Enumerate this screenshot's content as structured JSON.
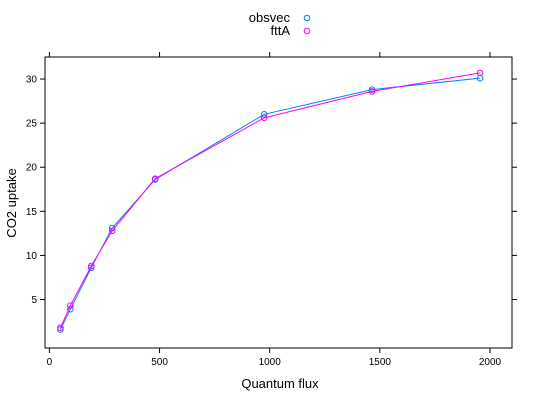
{
  "chart_data": {
    "type": "line",
    "title": "",
    "xlabel": "Quantum flux",
    "ylabel": "CO2 uptake",
    "xlim": [
      -20,
      2100
    ],
    "ylim": [
      -0.5,
      32.5
    ],
    "xticks": [
      0,
      500,
      1000,
      1500,
      2000
    ],
    "yticks": [
      5,
      10,
      15,
      20,
      25,
      30
    ],
    "grid": false,
    "legend_position": "top-center",
    "series": [
      {
        "name": "obsvec",
        "color": "#0080ff",
        "x": [
          50,
          95,
          190,
          285,
          480,
          975,
          1465,
          1955
        ],
        "y": [
          1.6,
          3.9,
          8.6,
          13.1,
          18.6,
          26.0,
          28.8,
          30.1
        ]
      },
      {
        "name": "fttA",
        "color": "#ff00ff",
        "x": [
          50,
          95,
          190,
          285,
          480,
          975,
          1465,
          1955
        ],
        "y": [
          1.8,
          4.3,
          8.8,
          12.8,
          18.7,
          25.6,
          28.6,
          30.7
        ]
      }
    ]
  }
}
